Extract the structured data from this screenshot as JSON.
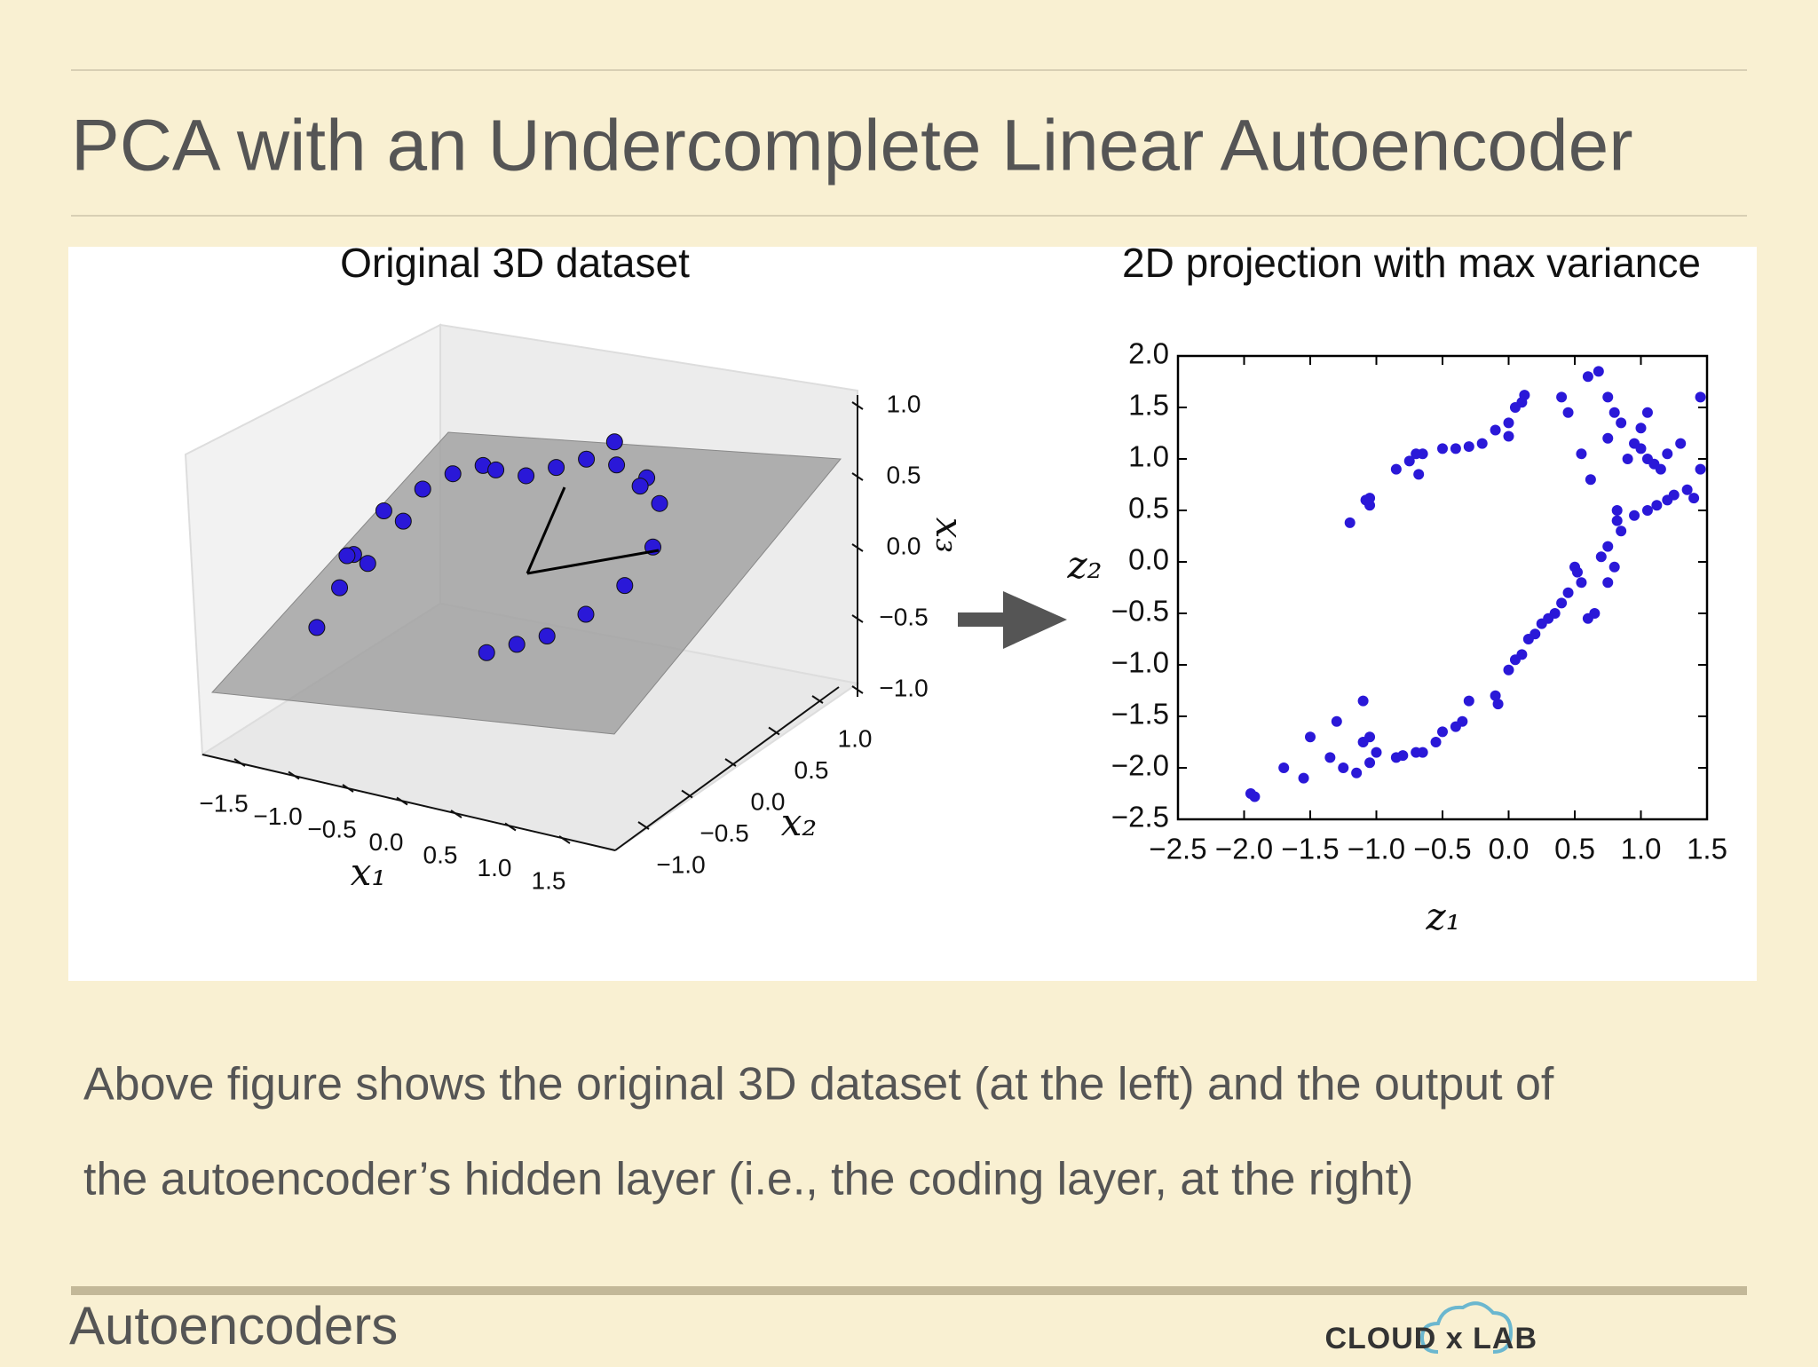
{
  "slide": {
    "title": "PCA with an Undercomplete Linear Autoencoder",
    "caption": [
      "Above figure shows the original 3D dataset (at the left) and the output of",
      "the autoencoder’s hidden layer (i.e., the coding layer, at the right)"
    ],
    "footer": "Autoencoders",
    "logo": "CLOUD x LAB"
  },
  "chart_data": [
    {
      "type": "scatter3d",
      "title": "Original 3D dataset",
      "xlabel": "x₁",
      "ylabel": "x₂",
      "zlabel": "x₃",
      "color": "#2a18d8",
      "xticks": [
        {
          "value": -1.5,
          "label": "−1.5"
        },
        {
          "value": -1.0,
          "label": "−1.0"
        },
        {
          "value": -0.5,
          "label": "−0.5"
        },
        {
          "value": 0,
          "label": "0.0"
        },
        {
          "value": 0.5,
          "label": "0.5"
        },
        {
          "value": 1.0,
          "label": "1.0"
        },
        {
          "value": 1.5,
          "label": "1.5"
        }
      ],
      "yticks": [
        {
          "value": -1.0,
          "label": "−1.0"
        },
        {
          "value": -0.5,
          "label": "−0.5"
        },
        {
          "value": 0,
          "label": "0.0"
        },
        {
          "value": 0.5,
          "label": "0.5"
        },
        {
          "value": 1.0,
          "label": "1.0"
        }
      ],
      "zticks": [
        {
          "value": -1.0,
          "label": "−1.0"
        },
        {
          "value": -0.5,
          "label": "−0.5"
        },
        {
          "value": 0,
          "label": "0.0"
        },
        {
          "value": 0.5,
          "label": "0.5"
        },
        {
          "value": 1.0,
          "label": "1.0"
        }
      ],
      "x": [
        -1.3,
        -1.25,
        -1.2,
        -1.1,
        -1.0,
        -0.8,
        -0.6,
        -0.4,
        -0.2,
        0.0,
        0.2,
        0.4,
        0.6,
        0.8,
        1.0,
        1.1,
        1.0,
        0.8,
        0.6,
        0.4,
        0.2,
        -1.15,
        -0.9,
        0.5,
        0.9
      ],
      "y": [
        -0.6,
        -0.4,
        -0.3,
        -0.5,
        -0.2,
        0.0,
        0.1,
        0.2,
        0.1,
        0.2,
        0.3,
        0.4,
        0.5,
        0.6,
        0.5,
        0.3,
        0.1,
        -0.1,
        -0.3,
        -0.4,
        -0.5,
        -0.2,
        -0.1,
        0.6,
        0.4
      ],
      "z": [
        -0.6,
        -0.4,
        -0.2,
        -0.1,
        0.1,
        0.2,
        0.3,
        0.35,
        0.4,
        0.35,
        0.4,
        0.45,
        0.4,
        0.3,
        0.2,
        0.0,
        -0.2,
        -0.35,
        -0.45,
        -0.5,
        -0.55,
        -0.3,
        0.0,
        0.5,
        0.35
      ]
    },
    {
      "type": "scatter",
      "title": "2D projection with max variance",
      "xlabel": "z₁",
      "ylabel": "z₂",
      "color": "#2a18d8",
      "xlim": [
        -2.5,
        1.5
      ],
      "ylim": [
        -2.5,
        2.0
      ],
      "xticks": [
        {
          "value": -2.5,
          "label": "−2.5"
        },
        {
          "value": -2.0,
          "label": "−2.0"
        },
        {
          "value": -1.5,
          "label": "−1.5"
        },
        {
          "value": -1.0,
          "label": "−1.0"
        },
        {
          "value": -0.5,
          "label": "−0.5"
        },
        {
          "value": 0,
          "label": "0.0"
        },
        {
          "value": 0.5,
          "label": "0.5"
        },
        {
          "value": 1.0,
          "label": "1.0"
        },
        {
          "value": 1.5,
          "label": "1.5"
        }
      ],
      "yticks": [
        {
          "value": 2.0,
          "label": "2.0"
        },
        {
          "value": 1.5,
          "label": "1.5"
        },
        {
          "value": 1.0,
          "label": "1.0"
        },
        {
          "value": 0.5,
          "label": "0.5"
        },
        {
          "value": 0,
          "label": "0.0"
        },
        {
          "value": -0.5,
          "label": "−0.5"
        },
        {
          "value": -1.0,
          "label": "−1.0"
        },
        {
          "value": -1.5,
          "label": "−1.5"
        },
        {
          "value": -2.0,
          "label": "−2.0"
        },
        {
          "value": -2.5,
          "label": "−2.5"
        }
      ],
      "x": [
        -1.2,
        -1.05,
        -1.05,
        -1.08,
        -0.85,
        -0.75,
        -0.7,
        -0.65,
        -0.68,
        -0.5,
        -0.4,
        -0.3,
        -0.2,
        -0.1,
        0.0,
        0.0,
        0.05,
        0.1,
        0.12,
        0.4,
        0.45,
        0.6,
        0.68,
        0.75,
        0.55,
        0.62,
        0.75,
        0.8,
        0.85,
        0.9,
        0.95,
        1.0,
        1.0,
        1.05,
        1.05,
        1.1,
        1.15,
        1.2,
        1.3,
        1.45,
        1.45,
        0.82,
        0.82,
        0.85,
        0.95,
        1.05,
        1.12,
        1.2,
        1.25,
        1.35,
        1.4,
        0.75,
        0.7,
        0.8,
        0.5,
        0.52,
        0.55,
        0.45,
        0.4,
        0.35,
        0.3,
        0.25,
        0.2,
        0.15,
        0.1,
        0.0,
        0.05,
        -0.1,
        -0.08,
        -0.3,
        -0.35,
        -0.4,
        -0.5,
        -0.55,
        -0.65,
        -0.7,
        -0.8,
        -0.85,
        -1.0,
        -1.05,
        -1.05,
        -1.1,
        -1.1,
        -1.15,
        -1.25,
        -1.3,
        -1.35,
        -1.5,
        -1.55,
        -1.7,
        -1.95,
        -1.92,
        0.6,
        0.65,
        0.75
      ],
      "values": [
        0.38,
        0.55,
        0.62,
        0.6,
        0.9,
        0.98,
        1.05,
        1.05,
        0.85,
        1.1,
        1.1,
        1.12,
        1.15,
        1.28,
        1.22,
        1.35,
        1.5,
        1.55,
        1.62,
        1.6,
        1.45,
        1.8,
        1.85,
        1.6,
        1.05,
        0.8,
        1.2,
        1.45,
        1.35,
        1.0,
        1.15,
        1.1,
        1.3,
        1.45,
        1.0,
        0.95,
        0.9,
        1.05,
        1.15,
        1.6,
        0.9,
        0.5,
        0.4,
        0.3,
        0.45,
        0.5,
        0.55,
        0.6,
        0.65,
        0.7,
        0.62,
        0.15,
        0.05,
        -0.05,
        -0.05,
        -0.1,
        -0.2,
        -0.3,
        -0.4,
        -0.5,
        -0.55,
        -0.6,
        -0.7,
        -0.75,
        -0.9,
        -1.05,
        -0.95,
        -1.3,
        -1.38,
        -1.35,
        -1.55,
        -1.6,
        -1.65,
        -1.75,
        -1.85,
        -1.85,
        -1.88,
        -1.9,
        -1.85,
        -1.7,
        -1.95,
        -1.75,
        -1.35,
        -2.05,
        -2.0,
        -1.55,
        -1.9,
        -1.7,
        -2.1,
        -2.0,
        -2.25,
        -2.28,
        -0.55,
        -0.5,
        -0.2
      ]
    }
  ]
}
